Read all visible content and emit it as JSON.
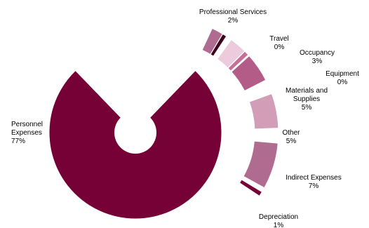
{
  "chart_data": {
    "type": "pie",
    "title": "",
    "categories": [
      "Personnel Expenses",
      "Professional Services",
      "Travel",
      "Occupancy",
      "Equipment",
      "Materials and Supplies",
      "Other",
      "Indirect Expenses",
      "Depreciation"
    ],
    "values": [
      77,
      2,
      0,
      3,
      0,
      5,
      5,
      7,
      1
    ],
    "label_lines": [
      [
        "Personnel",
        "Expenses",
        "77%"
      ],
      [
        "Professional Services",
        "2%"
      ],
      [
        "Travel",
        "0%"
      ],
      [
        "Occupancy",
        "3%"
      ],
      [
        "Equipment",
        "0%"
      ],
      [
        "Materials and",
        "Supplies",
        "5%"
      ],
      [
        "Other",
        "5%"
      ],
      [
        "Indirect Expenses",
        "7%"
      ],
      [
        "Depreciation",
        "1%"
      ]
    ],
    "colors": [
      "#760137",
      "#b06b90",
      "#3d001d",
      "#ecccdc",
      "#c76f99",
      "#b25c87",
      "#d19db7",
      "#b06b90",
      "#760137"
    ],
    "inner_hole": true,
    "legend": "none"
  }
}
